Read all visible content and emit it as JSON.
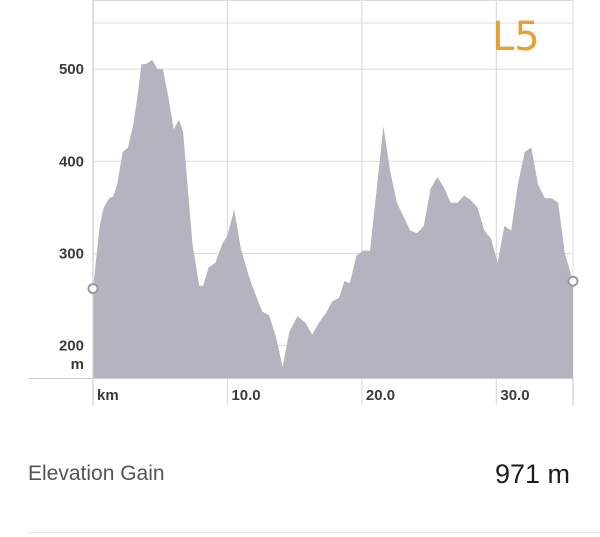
{
  "badge": "L5",
  "stats": {
    "label": "Elevation Gain",
    "value": "971 m"
  },
  "colors": {
    "fill": "#b4b4c0",
    "grid": "#dcdcdc",
    "badge": "#e8a033"
  },
  "chart_data": {
    "type": "area",
    "y_unit_label": "m",
    "x_unit_label": "km",
    "xlim": [
      0,
      35.7
    ],
    "ylim": [
      165,
      575
    ],
    "y_ticks": [
      200,
      300,
      400,
      500
    ],
    "y_tick_labels": [
      "200",
      "300",
      "400",
      "500"
    ],
    "x_ticks": [
      10,
      20,
      30
    ],
    "x_tick_labels": [
      "10.0",
      "20.0",
      "30.0"
    ],
    "grid": true,
    "series": [
      {
        "x": [
          0,
          0.5,
          0.8,
          1.2,
          1.5,
          1.8,
          2.2,
          2.6,
          3.0,
          3.3,
          3.6,
          4.0,
          4.4,
          4.8,
          5.2,
          5.6,
          6.0,
          6.4,
          6.7,
          7.0,
          7.4,
          7.9,
          8.2,
          8.6,
          9.1,
          9.6,
          10.0,
          10.5,
          11.0,
          11.6,
          12.1,
          12.6,
          13.1,
          13.6,
          14.1,
          14.6,
          15.2,
          15.8,
          16.3,
          16.8,
          17.3,
          17.8,
          18.3,
          18.7,
          19.1,
          19.6,
          20.1,
          20.6,
          21.1,
          21.6,
          22.1,
          22.6,
          23.1,
          23.6,
          24.1,
          24.6,
          25.1,
          25.6,
          26.1,
          26.6,
          27.1,
          27.6,
          28.1,
          28.6,
          29.1,
          29.6,
          30.1,
          30.6,
          31.1,
          31.6,
          32.1,
          32.6,
          33.1,
          33.6,
          34.1,
          34.6,
          35.1,
          35.7
        ],
        "y": [
          262,
          330,
          350,
          360,
          362,
          375,
          410,
          415,
          440,
          470,
          505,
          506,
          510,
          500,
          500,
          470,
          435,
          445,
          432,
          380,
          310,
          265,
          265,
          285,
          290,
          310,
          320,
          348,
          305,
          275,
          255,
          237,
          233,
          210,
          177,
          215,
          232,
          225,
          212,
          225,
          235,
          248,
          252,
          270,
          268,
          298,
          303,
          303,
          370,
          438,
          390,
          355,
          340,
          325,
          322,
          330,
          370,
          383,
          372,
          355,
          355,
          363,
          358,
          350,
          325,
          316,
          290,
          330,
          325,
          375,
          410,
          415,
          375,
          360,
          360,
          355,
          300,
          270
        ]
      }
    ]
  }
}
